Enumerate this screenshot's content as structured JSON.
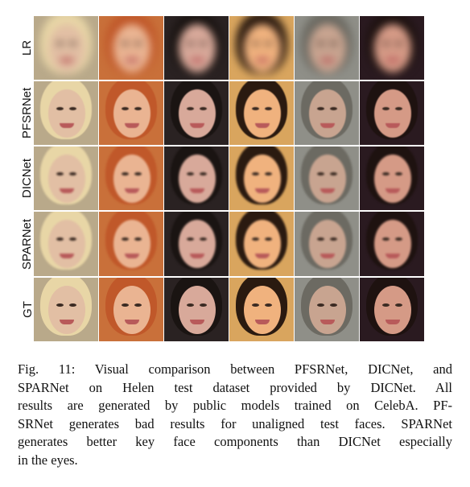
{
  "figure": {
    "row_labels": [
      "LR",
      "PFSRNet",
      "DICNet",
      "SPARNet",
      "GT"
    ],
    "palette": {
      "bg_colors": [
        "#b9a98a",
        "#c9703a",
        "#2a2222",
        "#d9a55e",
        "#8f8f88",
        "#2a1a20"
      ],
      "skin_colors": [
        "#e2bfa4",
        "#eab492",
        "#d8a99a",
        "#f0b27e",
        "#c8a490",
        "#d59a86"
      ],
      "hair_colors": [
        "#e8d6a6",
        "#c0582a",
        "#1a1412",
        "#2a1a10",
        "#6c6a62",
        "#1e1210"
      ]
    },
    "caption_lines": [
      "Fig. 11: Visual comparison between PFSRNet, DICNet, and",
      "SPARNet on Helen test dataset provided by DICNet. All",
      "results are generated by public models trained on CelebA. PF-",
      "SRNet generates bad results for unaligned test faces. SPARNet",
      "generates better key face components than DICNet especially",
      "in the eyes."
    ]
  }
}
